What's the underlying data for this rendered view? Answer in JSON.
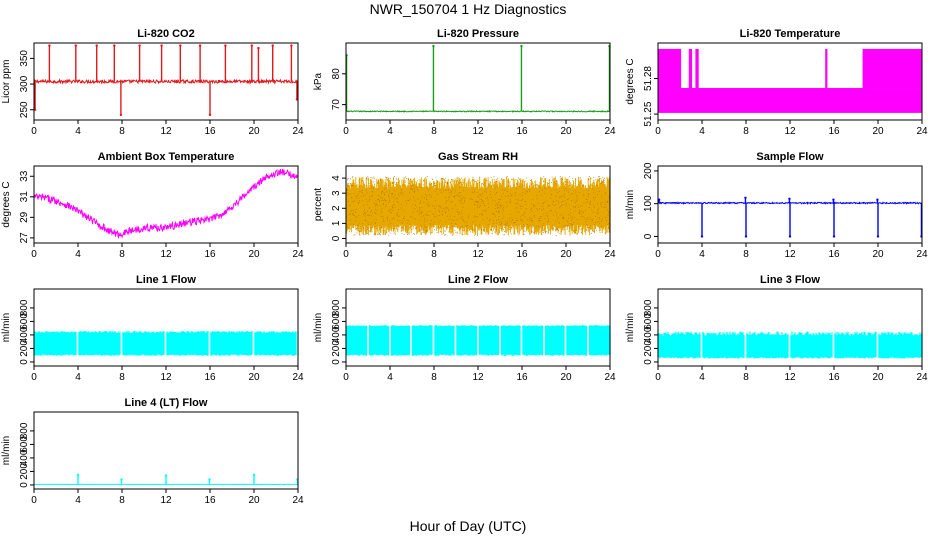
{
  "figure": {
    "title": "NWR_150704  1 Hz Diagnostics",
    "xlabel": "Hour of Day (UTC)"
  },
  "chart_data": [
    {
      "type": "line",
      "title": "Li-820 CO2",
      "ylabel": "Licor ppm",
      "xlabel": "",
      "xlim": [
        0,
        24
      ],
      "ylim": [
        230,
        380
      ],
      "xticks": [
        0,
        4,
        8,
        12,
        16,
        20,
        24
      ],
      "yticks": [
        250,
        300,
        350
      ],
      "color": "#e31a1c",
      "series": [
        {
          "baseline": 305,
          "noise": 3,
          "spikes": [
            {
              "x": 0.1,
              "v": 250
            },
            {
              "x": 1.4,
              "v": 375
            },
            {
              "x": 3.8,
              "v": 375
            },
            {
              "x": 5.7,
              "v": 375
            },
            {
              "x": 7.3,
              "v": 375
            },
            {
              "x": 7.9,
              "v": 240
            },
            {
              "x": 9.6,
              "v": 375
            },
            {
              "x": 11.6,
              "v": 375
            },
            {
              "x": 13.3,
              "v": 375
            },
            {
              "x": 15.1,
              "v": 375
            },
            {
              "x": 16.0,
              "v": 240
            },
            {
              "x": 17.4,
              "v": 375
            },
            {
              "x": 19.8,
              "v": 375
            },
            {
              "x": 20.4,
              "v": 370
            },
            {
              "x": 21.7,
              "v": 375
            },
            {
              "x": 23.4,
              "v": 375
            },
            {
              "x": 23.9,
              "v": 270
            }
          ]
        }
      ]
    },
    {
      "type": "line",
      "title": "Li-820 Pressure",
      "ylabel": "kPa",
      "xlabel": "",
      "xlim": [
        0,
        24
      ],
      "ylim": [
        65,
        90
      ],
      "xticks": [
        0,
        4,
        8,
        12,
        16,
        20,
        24
      ],
      "yticks": [
        70,
        80
      ],
      "color": "#1a9e1a",
      "series": [
        {
          "baseline": 67.8,
          "noise": 0.15,
          "spikes": [
            {
              "x": 0.05,
              "v": 86
            },
            {
              "x": 7.95,
              "v": 89
            },
            {
              "x": 15.95,
              "v": 89
            },
            {
              "x": 23.95,
              "v": 89
            }
          ]
        }
      ]
    },
    {
      "type": "area",
      "title": "Li-820 Temperature",
      "ylabel": "degrees C",
      "xlabel": "",
      "xlim": [
        0,
        24
      ],
      "ylim": [
        51.245,
        51.31
      ],
      "xticks": [
        0,
        4,
        8,
        12,
        16,
        20,
        24
      ],
      "yticks": [
        51.25,
        51.28
      ],
      "yticklabels": [
        "51.25",
        "51.28"
      ],
      "color": "#ff00ff",
      "series": [
        {
          "low": 51.251,
          "mid": 51.272,
          "high": 51.305,
          "high_segments": [
            [
              0,
              2.1
            ],
            [
              2.8,
              3.1
            ],
            [
              3.4,
              3.7
            ],
            [
              15.2,
              15.4
            ],
            [
              18.6,
              24
            ]
          ]
        }
      ]
    },
    {
      "type": "line",
      "title": "Ambient Box Temperature",
      "ylabel": "degrees C",
      "xlabel": "",
      "xlim": [
        0,
        24
      ],
      "ylim": [
        26.5,
        34
      ],
      "xticks": [
        0,
        4,
        8,
        12,
        16,
        20,
        24
      ],
      "yticks": [
        27,
        29,
        31,
        33
      ],
      "color": "#ff00ff",
      "series": [
        {
          "noise": 0.35,
          "points": [
            {
              "x": 0,
              "v": 31.0
            },
            {
              "x": 1,
              "v": 30.9
            },
            {
              "x": 2,
              "v": 30.6
            },
            {
              "x": 3,
              "v": 30.2
            },
            {
              "x": 4,
              "v": 29.6
            },
            {
              "x": 5,
              "v": 28.9
            },
            {
              "x": 6,
              "v": 28.2
            },
            {
              "x": 7,
              "v": 27.6
            },
            {
              "x": 7.7,
              "v": 27.3
            },
            {
              "x": 8.5,
              "v": 27.6
            },
            {
              "x": 9.5,
              "v": 27.9
            },
            {
              "x": 10.5,
              "v": 28.0
            },
            {
              "x": 11.5,
              "v": 28.0
            },
            {
              "x": 12.5,
              "v": 28.1
            },
            {
              "x": 13.5,
              "v": 28.4
            },
            {
              "x": 14.5,
              "v": 28.6
            },
            {
              "x": 15.5,
              "v": 28.7
            },
            {
              "x": 16.5,
              "v": 29.0
            },
            {
              "x": 17.5,
              "v": 29.6
            },
            {
              "x": 18.5,
              "v": 30.5
            },
            {
              "x": 19.5,
              "v": 31.5
            },
            {
              "x": 20.5,
              "v": 32.4
            },
            {
              "x": 21.5,
              "v": 33.2
            },
            {
              "x": 22.5,
              "v": 33.4
            },
            {
              "x": 23.5,
              "v": 33.1
            },
            {
              "x": 24,
              "v": 33.0
            }
          ]
        }
      ]
    },
    {
      "type": "area",
      "title": "Gas Stream RH",
      "ylabel": "percent",
      "xlabel": "",
      "xlim": [
        0,
        24
      ],
      "ylim": [
        -0.3,
        4.8
      ],
      "xticks": [
        0,
        4,
        8,
        12,
        16,
        20,
        24
      ],
      "yticks": [
        0,
        1,
        2,
        3,
        4
      ],
      "color": "#e6a800",
      "series": [
        {
          "band_low": 0.2,
          "band_high": 4.1,
          "core_low": 0.9,
          "core_high": 3.3
        }
      ]
    },
    {
      "type": "line",
      "title": "Sample Flow",
      "ylabel": "ml/min",
      "xlabel": "",
      "xlim": [
        0,
        24
      ],
      "ylim": [
        -20,
        215
      ],
      "xticks": [
        0,
        4,
        8,
        12,
        16,
        20,
        24
      ],
      "yticks": [
        0,
        100,
        200
      ],
      "color": "#0000ff",
      "series": [
        {
          "baseline": 102,
          "noise": 2,
          "spikes": [
            {
              "x": 0.1,
              "v": 112
            },
            {
              "x": 4.0,
              "v": 0
            },
            {
              "x": 7.95,
              "v": 118
            },
            {
              "x": 8.0,
              "v": 0
            },
            {
              "x": 11.95,
              "v": 115
            },
            {
              "x": 12.0,
              "v": 0
            },
            {
              "x": 15.95,
              "v": 112
            },
            {
              "x": 16.0,
              "v": 0
            },
            {
              "x": 19.95,
              "v": 112
            },
            {
              "x": 20.0,
              "v": 0
            },
            {
              "x": 23.95,
              "v": 0
            }
          ]
        }
      ]
    },
    {
      "type": "area",
      "title": "Line 1 Flow",
      "ylabel": "ml/min",
      "xlabel": "",
      "xlim": [
        0,
        24
      ],
      "ylim": [
        -60,
        1080
      ],
      "xticks": [
        0,
        4,
        8,
        12,
        16,
        20,
        24
      ],
      "yticks": [
        0,
        200,
        400,
        600,
        800
      ],
      "color": "#00ffff",
      "series": [
        {
          "low": 100,
          "high": 460,
          "jitter": 30,
          "gaps": [
            3.95,
            7.95,
            11.95,
            15.95,
            19.95,
            23.95
          ]
        }
      ]
    },
    {
      "type": "area",
      "title": "Line 2 Flow",
      "ylabel": "ml/min",
      "xlabel": "",
      "xlim": [
        0,
        24
      ],
      "ylim": [
        -60,
        1080
      ],
      "xticks": [
        0,
        4,
        8,
        12,
        16,
        20,
        24
      ],
      "yticks": [
        0,
        200,
        400,
        600,
        800
      ],
      "color": "#00ffff",
      "series": [
        {
          "low": 100,
          "high": 545,
          "jitter": 15,
          "gaps": [
            2.0,
            4.0,
            5.9,
            7.95,
            9.95,
            12.0,
            14.0,
            15.95,
            18.0,
            19.95,
            22.0
          ]
        }
      ]
    },
    {
      "type": "area",
      "title": "Line 3 Flow",
      "ylabel": "ml/min",
      "xlabel": "",
      "xlim": [
        0,
        24
      ],
      "ylim": [
        -60,
        1080
      ],
      "xticks": [
        0,
        4,
        8,
        12,
        16,
        20,
        24
      ],
      "yticks": [
        0,
        200,
        400,
        600,
        800
      ],
      "color": "#00ffff",
      "series": [
        {
          "low": 60,
          "high": 450,
          "jitter": 60,
          "gaps": [
            3.95,
            7.95,
            11.95,
            15.95,
            19.95
          ]
        }
      ]
    },
    {
      "type": "line",
      "title": "Line 4 (LT) Flow",
      "ylabel": "ml/min",
      "xlabel": "",
      "xlim": [
        0,
        24
      ],
      "ylim": [
        -60,
        1080
      ],
      "xticks": [
        0,
        4,
        8,
        12,
        16,
        20,
        24
      ],
      "yticks": [
        0,
        200,
        400,
        600,
        800
      ],
      "color": "#00ffff",
      "series": [
        {
          "baseline": 8,
          "noise": 2,
          "spikes": [
            {
              "x": 4.0,
              "v": 150
            },
            {
              "x": 7.95,
              "v": 80
            },
            {
              "x": 12.0,
              "v": 140
            },
            {
              "x": 15.95,
              "v": 80
            },
            {
              "x": 20.0,
              "v": 150
            },
            {
              "x": 23.95,
              "v": 80
            }
          ]
        }
      ]
    }
  ]
}
